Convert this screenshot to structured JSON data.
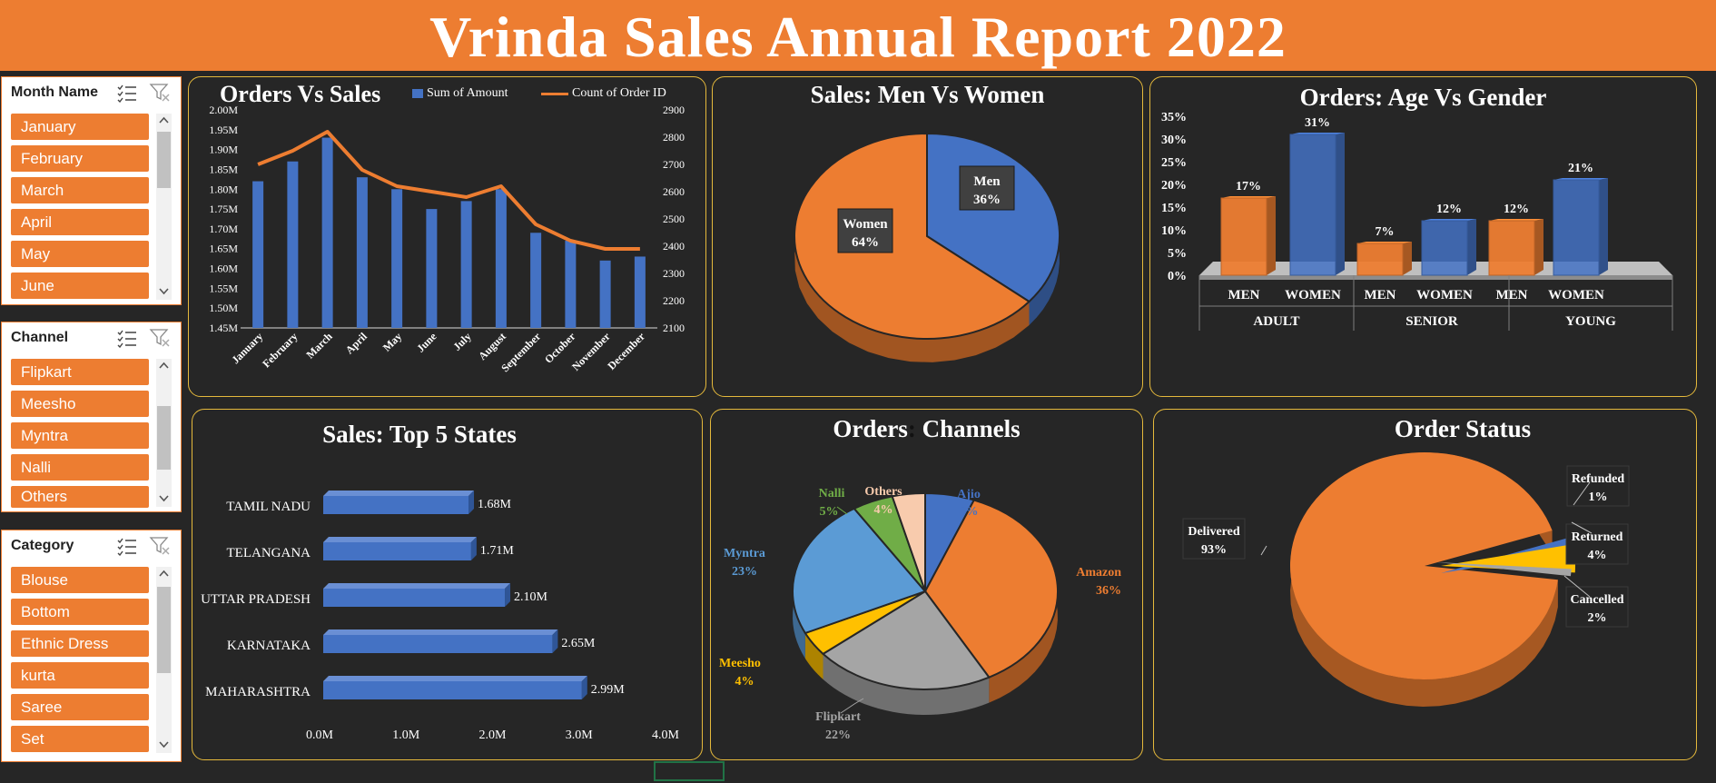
{
  "title": "Vrinda Sales Annual Report 2022",
  "colors": {
    "accent": "#ED7D31",
    "blue": "#4472C4",
    "background": "#262626",
    "panel_border": "#E5B93C"
  },
  "slicers": {
    "month": {
      "header": "Month Name",
      "items": [
        "January",
        "February",
        "March",
        "April",
        "May",
        "June"
      ]
    },
    "channel": {
      "header": "Channel",
      "items": [
        "Flipkart",
        "Meesho",
        "Myntra",
        "Nalli",
        "Others"
      ]
    },
    "category": {
      "header": "Category",
      "items": [
        "Blouse",
        "Bottom",
        "Ethnic Dress",
        "kurta",
        "Saree",
        "Set"
      ]
    },
    "icons": [
      "multi-select-icon",
      "clear-filter-icon",
      "scroll-up-icon",
      "scroll-down-icon"
    ]
  },
  "chart_data": [
    {
      "type": "bar",
      "title": "Orders Vs Sales",
      "categories": [
        "January",
        "February",
        "March",
        "April",
        "May",
        "June",
        "July",
        "August",
        "September",
        "October",
        "November",
        "December"
      ],
      "series": [
        {
          "name": "Sum of Amount",
          "kind": "bar",
          "axis": "left",
          "values": [
            1.82,
            1.87,
            1.93,
            1.83,
            1.8,
            1.75,
            1.77,
            1.8,
            1.69,
            1.67,
            1.62,
            1.63
          ]
        },
        {
          "name": "Count of Order ID",
          "kind": "line",
          "axis": "right",
          "values": [
            2700,
            2750,
            2820,
            2680,
            2620,
            2600,
            2580,
            2620,
            2480,
            2420,
            2390,
            2390
          ]
        }
      ],
      "left_axis": {
        "min": 1.45,
        "max": 2.0,
        "ticks": [
          "1.45M",
          "1.50M",
          "1.55M",
          "1.60M",
          "1.65M",
          "1.70M",
          "1.75M",
          "1.80M",
          "1.85M",
          "1.90M",
          "1.95M",
          "2.00M"
        ]
      },
      "right_axis": {
        "min": 2100,
        "max": 2900,
        "ticks": [
          "2100",
          "2200",
          "2300",
          "2400",
          "2500",
          "2600",
          "2700",
          "2800",
          "2900"
        ]
      },
      "legend": "top-right",
      "colors": {
        "bar": "#4472C4",
        "line": "#ED7D31"
      }
    },
    {
      "type": "pie",
      "title": "Sales: Men Vs Women",
      "slices": [
        {
          "label": "Men",
          "value": 36,
          "text": "36%",
          "color": "#4472C4"
        },
        {
          "label": "Women",
          "value": 64,
          "text": "64%",
          "color": "#ED7D31"
        }
      ]
    },
    {
      "type": "bar",
      "title": "Orders: Age Vs Gender",
      "groups": [
        "ADULT",
        "SENIOR",
        "YOUNG"
      ],
      "categories": [
        "MEN",
        "WOMEN",
        "MEN",
        "WOMEN",
        "MEN",
        "WOMEN"
      ],
      "values": [
        17,
        31,
        7,
        12,
        12,
        21
      ],
      "labels": [
        "17%",
        "31%",
        "7%",
        "12%",
        "12%",
        "21%"
      ],
      "ylim": [
        0,
        35
      ],
      "y_ticks": [
        "0%",
        "5%",
        "10%",
        "15%",
        "20%",
        "25%",
        "30%",
        "35%"
      ],
      "colors": {
        "MEN": "#ED7D31",
        "WOMEN": "#4472C4"
      }
    },
    {
      "type": "bar",
      "title": "Sales: Top 5 States",
      "orientation": "horizontal",
      "categories": [
        "TAMIL NADU",
        "TELANGANA",
        "UTTAR PRADESH",
        "KARNATAKA",
        "MAHARASHTRA"
      ],
      "values": [
        1.68,
        1.71,
        2.1,
        2.65,
        2.99
      ],
      "labels": [
        "1.68M",
        "1.71M",
        "2.10M",
        "2.65M",
        "2.99M"
      ],
      "xlim": [
        0,
        4
      ],
      "x_ticks": [
        "0.0M",
        "1.0M",
        "2.0M",
        "3.0M",
        "4.0M"
      ],
      "color": "#4472C4"
    },
    {
      "type": "pie",
      "title": "Orders: Channels",
      "title_parts": [
        "Orders",
        ":",
        " Channels"
      ],
      "slices": [
        {
          "label": "Ajio",
          "value": 6,
          "text": "6%",
          "color": "#4472C4"
        },
        {
          "label": "Amazon",
          "value": 36,
          "text": "36%",
          "color": "#ED7D31"
        },
        {
          "label": "Flipkart",
          "value": 22,
          "text": "22%",
          "color": "#A5A5A5"
        },
        {
          "label": "Meesho",
          "value": 4,
          "text": "4%",
          "color": "#FFC000"
        },
        {
          "label": "Myntra",
          "value": 23,
          "text": "23%",
          "color": "#5B9BD5"
        },
        {
          "label": "Nalli",
          "value": 5,
          "text": "5%",
          "color": "#70AD47"
        },
        {
          "label": "Others",
          "value": 4,
          "text": "4%",
          "color": "#F8CBAD"
        }
      ]
    },
    {
      "type": "pie",
      "title": "Order Status",
      "slices": [
        {
          "label": "Delivered",
          "value": 93,
          "text": "93%",
          "color": "#ED7D31"
        },
        {
          "label": "Cancelled",
          "value": 2,
          "text": "2%",
          "color": "#4472C4"
        },
        {
          "label": "Returned",
          "value": 4,
          "text": "4%",
          "color": "#FFC000"
        },
        {
          "label": "Refunded",
          "value": 1,
          "text": "1%",
          "color": "#A5A5A5"
        }
      ]
    }
  ]
}
